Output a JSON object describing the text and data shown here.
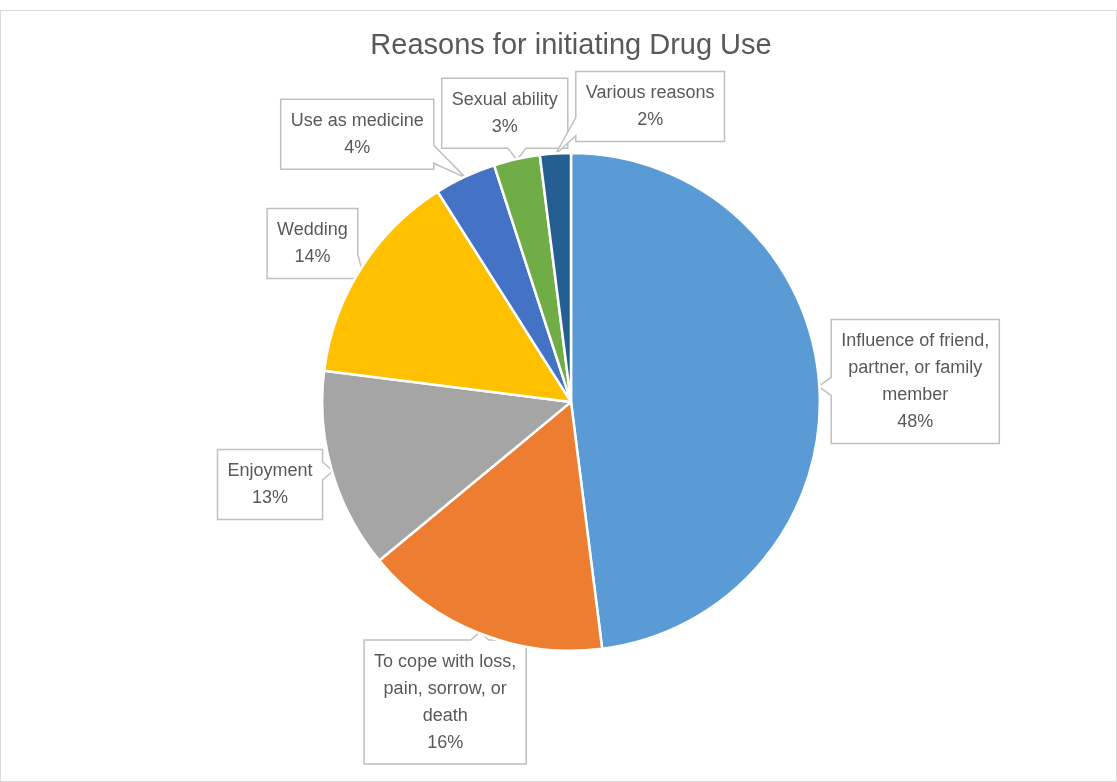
{
  "chart_data": {
    "type": "pie",
    "title": "Reasons for initiating Drug Use",
    "categories": [
      "Influence of friend, partner, or family member",
      "To cope with loss, pain, sorrow, or death",
      "Enjoyment",
      "Wedding",
      "Use as medicine",
      "Sexual ability",
      "Various reasons"
    ],
    "values": [
      48,
      16,
      13,
      14,
      4,
      3,
      2
    ],
    "colors": [
      "#5b9bd5",
      "#ed7d31",
      "#a5a5a5",
      "#ffc000",
      "#4472c4",
      "#70ad47",
      "#255e91"
    ],
    "value_labels": [
      "48%",
      "16%",
      "13%",
      "14%",
      "4%",
      "3%",
      "2%"
    ],
    "legend": false
  }
}
